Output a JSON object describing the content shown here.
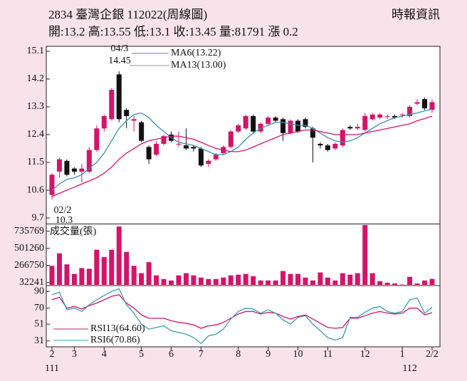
{
  "header": {
    "title": "2834 臺灣企銀 112022(周線圖)",
    "source": "時報資訊",
    "summary": "開:13.2 高:13.55 低:13.1 收:13.45 量:81791 漲 0.2"
  },
  "chart_data": [
    {
      "type": "candlestick",
      "categories": [
        "2",
        null,
        null,
        "3",
        null,
        null,
        null,
        "4",
        null,
        null,
        null,
        null,
        "5",
        null,
        null,
        null,
        "6",
        null,
        null,
        null,
        "7",
        null,
        null,
        null,
        null,
        "8",
        null,
        null,
        null,
        "9",
        null,
        null,
        null,
        "10",
        null,
        null,
        null,
        "11",
        null,
        null,
        null,
        null,
        "12",
        null,
        null,
        null,
        null,
        "1",
        null,
        null,
        null,
        "2/2"
      ],
      "year_labels": [
        "111",
        null,
        null,
        null,
        null,
        null,
        null,
        null,
        null,
        null,
        null,
        null,
        null,
        null,
        null,
        null,
        null,
        null,
        null,
        null,
        null,
        null,
        null,
        null,
        null,
        null,
        null,
        null,
        null,
        null,
        null,
        null,
        null,
        null,
        null,
        null,
        null,
        null,
        null,
        null,
        null,
        null,
        null,
        null,
        null,
        null,
        null,
        null,
        "112",
        null,
        null,
        null
      ],
      "open": [
        10.45,
        11.2,
        11.55,
        11.3,
        11.2,
        11.2,
        11.9,
        12.6,
        12.9,
        14.35,
        13.2,
        12.85,
        12.8,
        12.0,
        11.75,
        12.1,
        12.4,
        12.1,
        12.05,
        12.0,
        11.95,
        11.45,
        11.6,
        11.8,
        12.0,
        12.5,
        12.6,
        13.0,
        12.5,
        12.75,
        12.95,
        12.9,
        12.45,
        12.85,
        12.9,
        12.6,
        12.1,
        12.05,
        11.95,
        12.05,
        12.65,
        12.6,
        12.55,
        12.9,
        12.95,
        13.0,
        13.0,
        13.05,
        13.0,
        13.4,
        13.55,
        13.2
      ],
      "high": [
        11.15,
        11.65,
        11.6,
        11.35,
        11.45,
        12.0,
        12.7,
        13.05,
        13.9,
        14.45,
        13.25,
        13.0,
        12.85,
        12.05,
        12.2,
        12.4,
        12.5,
        12.5,
        12.6,
        12.05,
        12.0,
        11.6,
        11.8,
        12.05,
        12.55,
        12.75,
        13.05,
        13.05,
        12.8,
        13.0,
        13.0,
        12.95,
        12.9,
        12.9,
        12.95,
        12.65,
        12.15,
        12.1,
        12.15,
        12.6,
        12.7,
        12.75,
        13.1,
        13.1,
        13.1,
        13.05,
        13.05,
        13.1,
        13.35,
        13.55,
        13.6,
        13.55
      ],
      "low": [
        10.3,
        11.0,
        11.05,
        11.1,
        10.85,
        11.15,
        11.85,
        12.5,
        12.85,
        12.8,
        12.6,
        12.5,
        12.15,
        11.45,
        11.7,
        12.05,
        12.15,
        12.0,
        11.9,
        11.85,
        11.35,
        11.35,
        11.55,
        11.75,
        11.95,
        12.45,
        12.55,
        12.45,
        12.45,
        12.7,
        12.8,
        12.2,
        12.4,
        12.45,
        12.6,
        11.5,
        11.95,
        11.85,
        11.9,
        12.0,
        12.55,
        12.55,
        12.5,
        12.85,
        12.9,
        12.9,
        12.9,
        12.95,
        12.95,
        13.35,
        13.2,
        13.1
      ],
      "close": [
        11.1,
        11.6,
        11.1,
        11.2,
        11.3,
        11.9,
        12.6,
        13.0,
        13.85,
        12.9,
        13.0,
        12.9,
        12.2,
        11.6,
        12.1,
        12.35,
        12.2,
        12.1,
        11.95,
        11.95,
        11.4,
        11.55,
        11.75,
        12.0,
        12.5,
        12.7,
        13.0,
        12.5,
        12.75,
        12.95,
        12.85,
        12.45,
        12.85,
        12.5,
        12.65,
        12.3,
        12.05,
        11.9,
        12.1,
        12.55,
        12.6,
        12.65,
        13.0,
        13.05,
        13.05,
        13.0,
        12.95,
        13.05,
        13.3,
        13.45,
        13.25,
        13.45
      ],
      "up_color": "#d3146a",
      "down_color": "#111111",
      "ylim": [
        9.54,
        15.26
      ],
      "yticks": [
        15.1,
        14.2,
        13.3,
        12.4,
        11.5,
        10.6,
        9.7
      ],
      "series": [
        {
          "name": "MA6(13.22)",
          "color": "#3d8fb5",
          "values": [
            10.6,
            10.8,
            10.95,
            11.0,
            11.1,
            11.3,
            11.5,
            11.8,
            12.2,
            12.6,
            12.85,
            13.05,
            13.1,
            12.95,
            12.7,
            12.5,
            12.3,
            12.15,
            12.1,
            12.05,
            11.95,
            11.85,
            11.75,
            11.75,
            11.85,
            12.0,
            12.25,
            12.45,
            12.6,
            12.7,
            12.8,
            12.8,
            12.75,
            12.7,
            12.7,
            12.6,
            12.45,
            12.3,
            12.2,
            12.15,
            12.2,
            12.3,
            12.45,
            12.6,
            12.75,
            12.85,
            12.95,
            13.0,
            13.05,
            13.1,
            13.17,
            13.22
          ]
        },
        {
          "name": "MA13(13.00)",
          "color": "#d3146a",
          "values": [
            10.4,
            10.5,
            10.6,
            10.7,
            10.8,
            10.9,
            11.0,
            11.15,
            11.35,
            11.6,
            11.8,
            11.95,
            12.1,
            12.2,
            12.25,
            12.3,
            12.35,
            12.35,
            12.3,
            12.25,
            12.15,
            12.05,
            11.95,
            11.9,
            11.85,
            11.85,
            11.9,
            12.0,
            12.1,
            12.2,
            12.3,
            12.4,
            12.45,
            12.5,
            12.55,
            12.55,
            12.5,
            12.45,
            12.4,
            12.4,
            12.4,
            12.4,
            12.45,
            12.5,
            12.55,
            12.6,
            12.65,
            12.7,
            12.75,
            12.85,
            12.92,
            13.0
          ]
        }
      ],
      "annotations": [
        {
          "date": "04/3",
          "value": 14.45
        },
        {
          "date": "02/2",
          "value": 10.3
        }
      ]
    },
    {
      "type": "bar",
      "title": "成交量(張)",
      "color": "#d3146a",
      "values": [
        261000,
        432000,
        281000,
        150000,
        231000,
        221000,
        482000,
        382000,
        482000,
        800000,
        452000,
        261000,
        160000,
        311000,
        130000,
        80000,
        60000,
        130000,
        160000,
        130000,
        100000,
        80000,
        80000,
        100000,
        130000,
        140000,
        150000,
        120000,
        60000,
        60000,
        60000,
        190000,
        150000,
        150000,
        100000,
        60000,
        170000,
        100000,
        60000,
        160000,
        140000,
        160000,
        830000,
        160000,
        50000,
        30000,
        20000,
        5000,
        110000,
        20000,
        60000,
        81791
      ],
      "ylim": [
        0,
        820000
      ],
      "yticks": [
        735769,
        501260,
        266750,
        32241
      ]
    },
    {
      "type": "line",
      "ylim": [
        24,
        96
      ],
      "yticks": [
        90,
        70,
        51,
        31
      ],
      "series": [
        {
          "name": "RSI13(64.60)",
          "color": "#d3146a",
          "values": [
            80,
            83,
            70,
            72,
            69,
            73,
            76,
            80,
            84,
            86,
            76,
            70,
            62,
            58,
            58,
            58,
            55,
            53,
            52,
            50,
            46,
            49,
            50,
            53,
            58,
            63,
            66,
            66,
            63,
            65,
            64,
            60,
            57,
            60,
            62,
            57,
            52,
            47,
            46,
            47,
            58,
            58,
            61,
            64,
            66,
            64,
            63,
            64,
            70,
            70,
            62,
            64.6
          ]
        },
        {
          "name": "RSI6(70.86)",
          "color": "#3a9bb8",
          "values": [
            86,
            89,
            68,
            70,
            66,
            74,
            80,
            85,
            90,
            93,
            74,
            64,
            51,
            45,
            47,
            49,
            43,
            41,
            39,
            35,
            28,
            37,
            39,
            45,
            57,
            66,
            70,
            69,
            64,
            68,
            64,
            56,
            51,
            59,
            61,
            51,
            43,
            35,
            32,
            35,
            59,
            59,
            65,
            70,
            72,
            66,
            64,
            66,
            80,
            82,
            64,
            70.86
          ]
        }
      ]
    }
  ]
}
